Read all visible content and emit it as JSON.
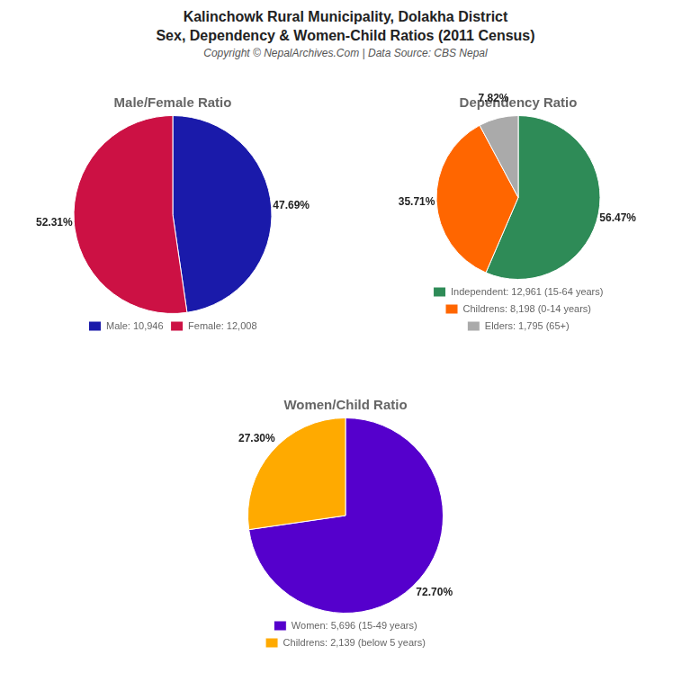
{
  "title": [
    "Kalinchowk Rural Municipality, Dolakha District",
    "Sex, Dependency & Women-Child Ratios (2011 Census)"
  ],
  "subtitle": "Copyright © NepalArchives.Com | Data Source: CBS Nepal",
  "chart_data": [
    {
      "type": "pie",
      "title": "Male/Female Ratio",
      "categories": [
        "Male: 10,946",
        "Female: 12,008"
      ],
      "values": [
        47.69,
        52.31
      ],
      "value_labels": [
        "47.69%",
        "52.31%"
      ],
      "colors": [
        "#1a1aaa",
        "#cc1144"
      ],
      "data_labels": true,
      "legend": "bottom"
    },
    {
      "type": "pie",
      "title": "Dependency Ratio",
      "categories": [
        "Independent: 12,961 (15-64 years)",
        "Childrens: 8,198 (0-14 years)",
        "Elders: 1,795 (65+)"
      ],
      "values": [
        56.47,
        35.71,
        7.82
      ],
      "value_labels": [
        "56.47%",
        "35.71%",
        "7.82%"
      ],
      "colors": [
        "#2e8b57",
        "#ff6600",
        "#aaaaaa"
      ],
      "data_labels": true,
      "legend": "bottom"
    },
    {
      "type": "pie",
      "title": "Women/Child Ratio",
      "categories": [
        "Women: 5,696 (15-49 years)",
        "Childrens: 2,139 (below 5 years)"
      ],
      "values": [
        72.7,
        27.3
      ],
      "value_labels": [
        "72.70%",
        "27.30%"
      ],
      "colors": [
        "#5500cc",
        "#ffaa00"
      ],
      "data_labels": true,
      "legend": "bottom"
    }
  ]
}
